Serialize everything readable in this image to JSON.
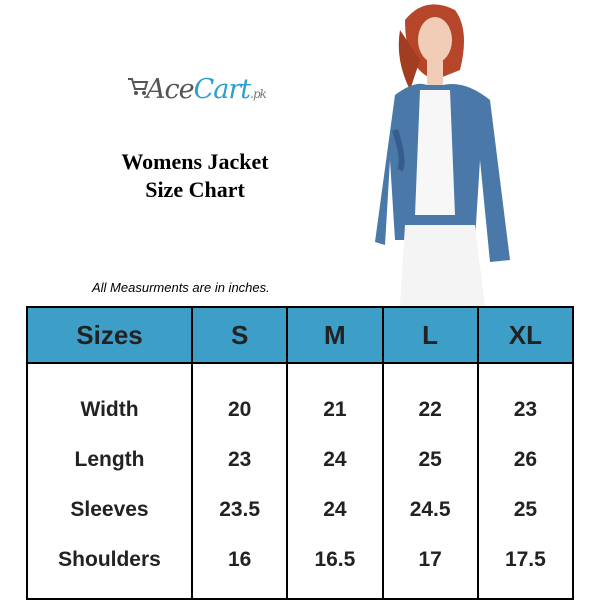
{
  "brand": {
    "name_part1": "Ace",
    "name_part2": "Cart",
    "suffix": ".pk",
    "colors": {
      "primary": "#2a9fd0",
      "secondary": "#555555"
    }
  },
  "title": {
    "line1": "Womens Jacket",
    "line2": "Size Chart"
  },
  "note": "All Measurments are in inches.",
  "table": {
    "header_color": "#3d9fc8",
    "headers": [
      "Sizes",
      "S",
      "M",
      "L",
      "XL"
    ],
    "rows": [
      [
        "Width",
        "20",
        "21",
        "22",
        "23"
      ],
      [
        "Length",
        "23",
        "24",
        "25",
        "26"
      ],
      [
        "Sleeves",
        "23.5",
        "24",
        "24.5",
        "25"
      ],
      [
        "Shoulders",
        "16",
        "16.5",
        "17",
        "17.5"
      ]
    ]
  }
}
